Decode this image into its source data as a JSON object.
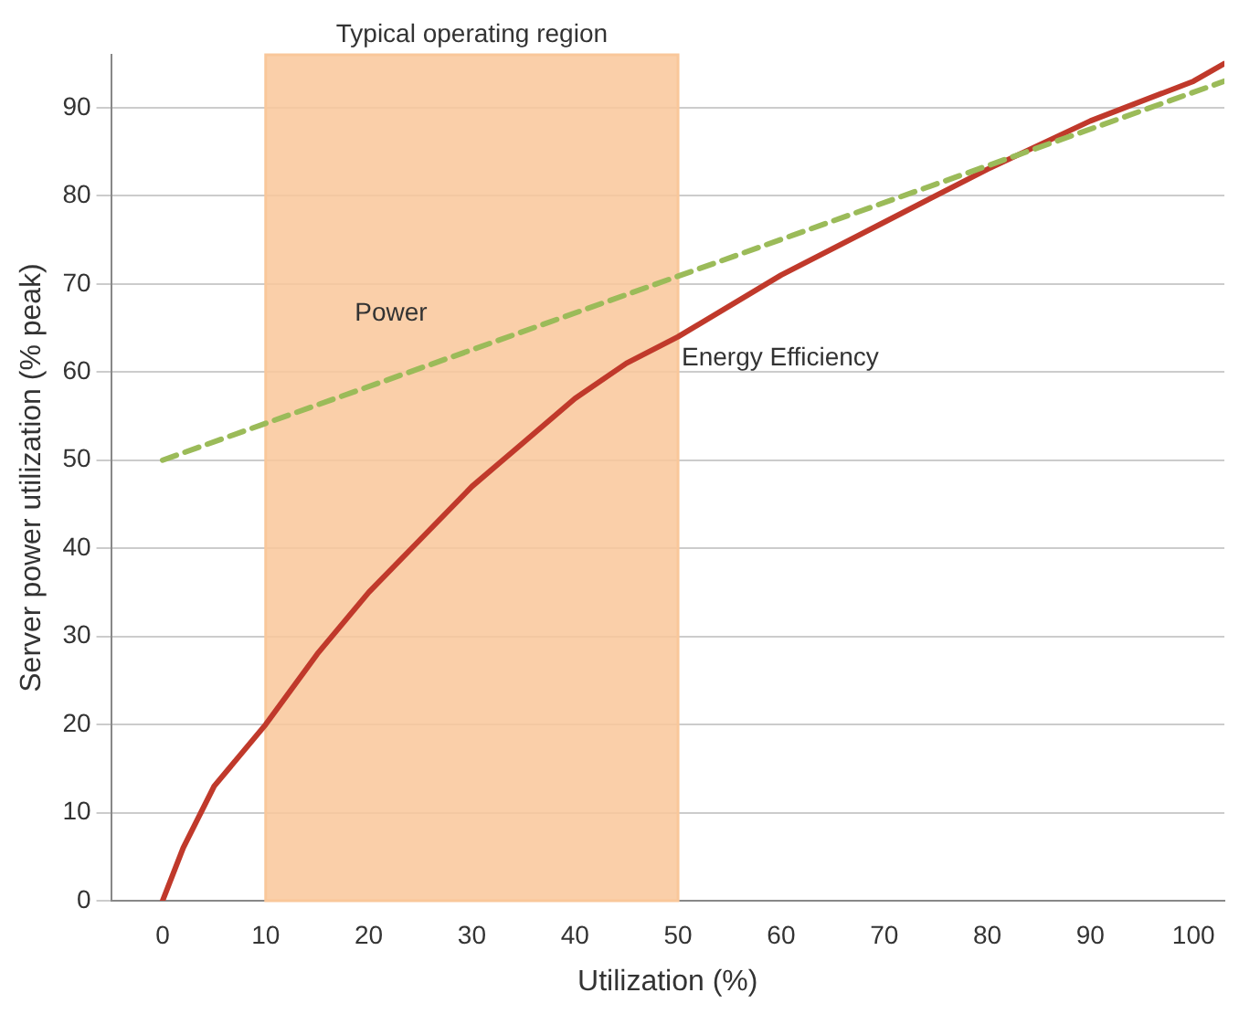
{
  "chart_data": {
    "type": "line",
    "xlabel": "Utilization (%)",
    "ylabel": "Server power utilization (% peak)",
    "xlim": [
      -5,
      103
    ],
    "xticks": [
      0,
      10,
      20,
      30,
      40,
      50,
      60,
      70,
      80,
      90,
      100
    ],
    "ylim": [
      0,
      96
    ],
    "yticks": [
      0,
      10,
      20,
      30,
      40,
      50,
      60,
      70,
      80,
      90
    ],
    "grid": "y",
    "legend": false,
    "marker": "none",
    "bands": [
      {
        "axis": "x",
        "from": 10,
        "to": 50,
        "label": "Typical operating region",
        "color": "#f9c79a"
      }
    ],
    "series": [
      {
        "name": "Power",
        "color": "#9bbb59",
        "line_style": "dashed",
        "x": [
          0,
          103
        ],
        "values": [
          50,
          93
        ]
      },
      {
        "name": "Energy Efficiency",
        "color": "#c0392b",
        "line_style": "solid",
        "x": [
          0,
          2,
          5,
          10,
          15,
          20,
          25,
          30,
          35,
          40,
          45,
          50,
          60,
          70,
          80,
          90,
          100,
          103
        ],
        "values": [
          0,
          6,
          13,
          20,
          28,
          35,
          41,
          47,
          52,
          57,
          61,
          64,
          71,
          77,
          83,
          88.5,
          93,
          95
        ]
      }
    ]
  }
}
